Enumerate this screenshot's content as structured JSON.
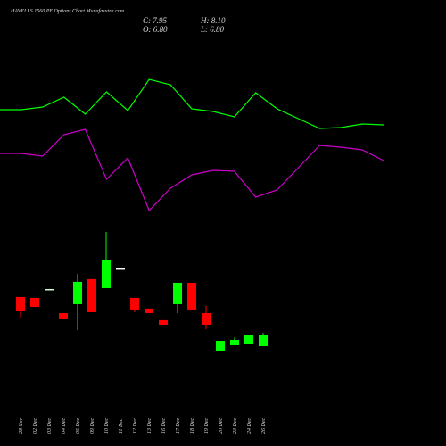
{
  "chart_data": [
    {
      "type": "candlestick",
      "title": "HAVELLS 1560 PE Options Chart Munafasutra.com",
      "annotations": [
        "C: 7.95",
        "O: 6.80",
        "H: 8.10",
        "L: 6.80"
      ],
      "categories": [
        "28 Nov",
        "02 Dec",
        "03 Dec",
        "04 Dec",
        "05 Dec",
        "09 Dec",
        "10 Dec",
        "11 Dec",
        "12 Dec",
        "13 Dec",
        "16 Dec",
        "17 Dec",
        "18 Dec",
        "19 Dec",
        "20 Dec",
        "23 Dec",
        "24 Dec",
        "26 Dec"
      ],
      "open": [
        11.67,
        11.58,
        12.46,
        10.07,
        10.96,
        13.44,
        12.55,
        14.5,
        11.58,
        10.52,
        9.37,
        10.96,
        13.08,
        10.07,
        6.36,
        6.89,
        6.98,
        6.8
      ],
      "high": [
        11.67,
        11.58,
        12.46,
        10.07,
        13.97,
        13.44,
        18.13,
        14.5,
        11.58,
        10.52,
        9.37,
        13.08,
        13.08,
        10.78,
        7.33,
        7.69,
        7.95,
        8.1
      ],
      "low": [
        9.54,
        10.69,
        12.46,
        9.46,
        8.39,
        10.16,
        12.55,
        14.5,
        10.16,
        10.07,
        8.92,
        10.07,
        10.43,
        8.48,
        6.36,
        6.89,
        6.98,
        6.8
      ],
      "close": [
        10.25,
        10.69,
        12.46,
        9.46,
        13.17,
        10.16,
        15.3,
        14.5,
        10.43,
        10.07,
        8.92,
        13.08,
        10.43,
        8.92,
        7.33,
        7.42,
        7.95,
        7.95
      ],
      "colors": [
        "#ff0000",
        "#ff0000",
        "#ccffcc",
        "#ff0000",
        "#00ff00",
        "#ff0000",
        "#00ff00",
        "#ffffff",
        "#ff0000",
        "#ff0000",
        "#ff0000",
        "#00ff00",
        "#ff0000",
        "#ff0000",
        "#00ff00",
        "#00ff00",
        "#00ff00",
        "#00ff00"
      ],
      "ylim": [
        5.74,
        19.0
      ]
    },
    {
      "type": "line",
      "ylim": [
        0,
        170
      ],
      "series": [
        {
          "color": "#00ff00",
          "values": [
            127,
            127,
            130,
            141,
            122,
            147,
            126,
            161,
            155,
            128,
            125,
            119,
            146,
            128,
            117,
            106,
            107,
            111,
            110
          ]
        },
        {
          "color": "#cc00cc",
          "values": [
            78,
            78,
            75,
            99,
            105,
            49,
            73,
            14,
            39,
            54,
            59,
            58,
            29,
            37,
            62,
            87,
            85,
            82,
            70
          ]
        }
      ]
    }
  ]
}
